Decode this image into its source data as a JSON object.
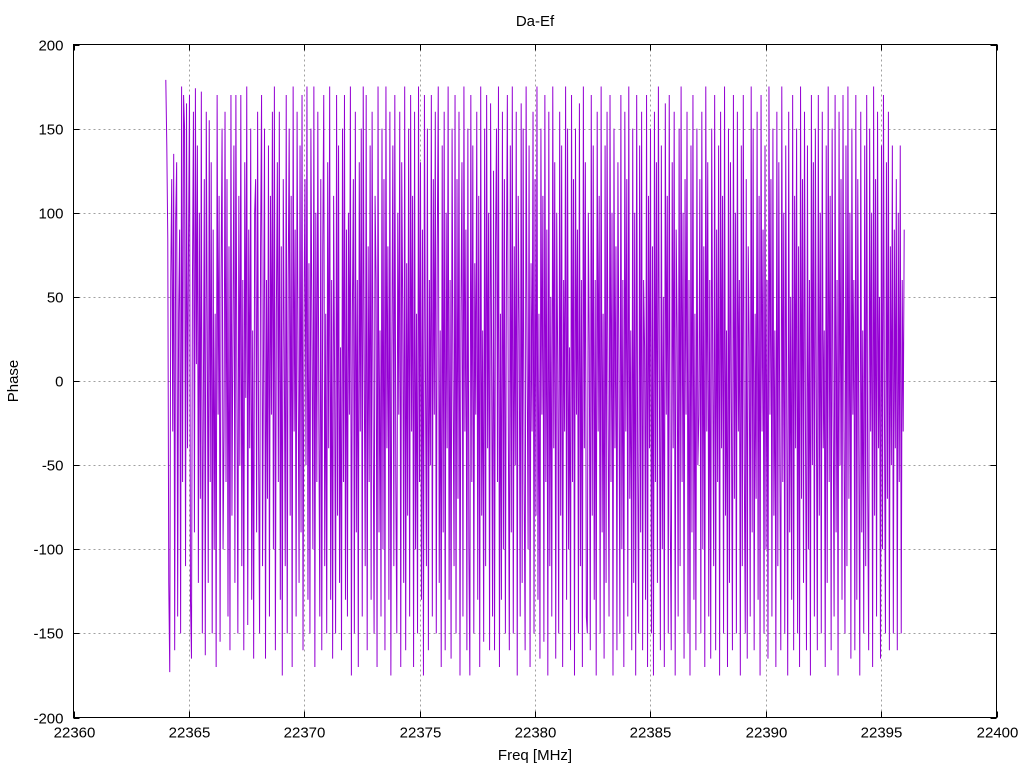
{
  "chart_data": {
    "type": "line",
    "title": "Da-Ef",
    "xlabel": "Freq [MHz]",
    "ylabel": "Phase",
    "xlim": [
      22360,
      22400
    ],
    "ylim": [
      -200,
      200
    ],
    "xticks": [
      22360,
      22365,
      22370,
      22375,
      22380,
      22385,
      22390,
      22395,
      22400
    ],
    "yticks": [
      -200,
      -150,
      -100,
      -50,
      0,
      50,
      100,
      150,
      200
    ],
    "grid": true,
    "line_color": "#9400d3",
    "series": [
      {
        "x_start": 22364.0,
        "x_end": 22396.0,
        "values": [
          179,
          140,
          85,
          -120,
          -173,
          60,
          120,
          -30,
          135,
          -160,
          95,
          130,
          -140,
          40,
          90,
          -150,
          175,
          -60,
          170,
          150,
          -110,
          165,
          -40,
          80,
          170,
          -130,
          -165,
          60,
          160,
          -90,
          174,
          10,
          140,
          -120,
          100,
          -70,
          172,
          -150,
          -20,
          120,
          -163,
          160,
          30,
          -120,
          155,
          -60,
          130,
          -150,
          90,
          -100,
          40,
          -170,
          170,
          -20,
          110,
          -155,
          60,
          150,
          -100,
          -30,
          160,
          -60,
          120,
          -140,
          80,
          -160,
          170,
          -80,
          30,
          140,
          -120,
          170,
          0,
          -150,
          110,
          -50,
          170,
          -110,
          60,
          -160,
          130,
          -10,
          175,
          -145,
          90,
          -40,
          150,
          -130,
          30,
          -165,
          100,
          120,
          -90,
          160,
          -40,
          -150,
          80,
          170,
          -110,
          20,
          150,
          -165,
          60,
          -70,
          140,
          -140,
          110,
          -20,
          160,
          -100,
          175,
          -160,
          40,
          130,
          -60,
          160,
          -130,
          80,
          -175,
          120,
          20,
          -110,
          170,
          -150,
          60,
          150,
          -80,
          110,
          -170,
          175,
          -30,
          90,
          -140,
          160,
          10,
          -120,
          140,
          -90,
          170,
          -160,
          40,
          120,
          -50,
          175,
          -130,
          70,
          -150,
          150,
          30,
          -100,
          175,
          -170,
          100,
          -60,
          160,
          -20,
          -140,
          120,
          -160,
          80,
          170,
          -110,
          40,
          -150,
          130,
          -40,
          175,
          -130,
          60,
          -165,
          110,
          0,
          -150,
          170,
          -80,
          140,
          -120,
          20,
          -160,
          150,
          -60,
          170,
          -130,
          90,
          -140,
          100,
          -20,
          175,
          -175,
          40,
          120,
          -150,
          160,
          -90,
          60,
          -170,
          130,
          -30,
          150,
          -140,
          175,
          10,
          -110,
          170,
          -160,
          80,
          -60,
          140,
          -130,
          160,
          -20,
          -150,
          110,
          60,
          -170,
          175,
          -90,
          30,
          -140,
          150,
          -100,
          120,
          -160,
          175,
          -40,
          80,
          -130,
          160,
          -175,
          20,
          140,
          -110,
          170,
          -60,
          -150,
          100,
          -20,
          160,
          -170,
          130,
          40,
          -120,
          175,
          -160,
          70,
          -80,
          150,
          -140,
          170,
          -30,
          110,
          -170,
          160,
          -100,
          40,
          -150,
          175,
          -60,
          130,
          -130,
          90,
          -175,
          170,
          10,
          -110,
          150,
          -160,
          60,
          -50,
          170,
          -140,
          120,
          -20,
          160,
          -150,
          80,
          175,
          -120,
          30,
          -170,
          140,
          -90,
          160,
          -160,
          100,
          -40,
          175,
          -130,
          60,
          -165,
          150,
          0,
          -110,
          170,
          -150,
          120,
          -70,
          160,
          -175,
          40,
          130,
          -140,
          175,
          -30,
          90,
          -160,
          150,
          -100,
          -175,
          170,
          -60,
          140,
          -150,
          70,
          -20,
          160,
          -130,
          110,
          -170,
          175,
          -80,
          30,
          -155,
          150,
          -110,
          170,
          -40,
          100,
          -160,
          165,
          20,
          -140,
          125,
          -160,
          80,
          150,
          -60,
          175,
          -170,
          40,
          -130,
          160,
          -100,
          120,
          -150,
          60,
          170,
          -30,
          -160,
          140,
          -90,
          175,
          -150,
          80,
          -50,
          160,
          -175,
          110,
          30,
          -140,
          165,
          -120,
          150,
          -60,
          -160,
          175,
          20,
          -100,
          140,
          -170,
          70,
          -30,
          160,
          -150,
          120,
          -80,
          175,
          -130,
          40,
          -165,
          150,
          -20,
          110,
          -155,
          170,
          -60,
          90,
          -175,
          160,
          -110,
          50,
          -140,
          175,
          -40,
          130,
          -165,
          100,
          10,
          -150,
          160,
          -80,
          140,
          -170,
          60,
          -30,
          175,
          -130,
          150,
          -100,
          20,
          -160,
          170,
          -60,
          120,
          -175,
          150,
          -20,
          90,
          -150,
          165,
          -110,
          60,
          -170,
          175,
          -40,
          130,
          -140,
          -150,
          100,
          20,
          -160,
          170,
          -80,
          140,
          -130,
          60,
          -175,
          160,
          -30,
          110,
          -150,
          175,
          -90,
          40,
          -165,
          140,
          -120,
          160,
          -20,
          -140,
          170,
          -60,
          100,
          -175,
          150,
          -40,
          80,
          -160,
          130,
          10,
          -150,
          170,
          -100,
          60,
          -170,
          160,
          -30,
          120,
          -140,
          175,
          -70,
          30,
          -160,
          150,
          -120,
          100,
          -175,
          170,
          -50,
          -150,
          140,
          -90,
          160,
          -160,
          60,
          20,
          -130,
          170,
          -170,
          110,
          -40,
          150,
          -150,
          80,
          -175,
          160,
          -60,
          130,
          -120,
          175,
          0,
          -160,
          140,
          -100,
          50,
          -170,
          165,
          -20,
          110,
          -150,
          170,
          -80,
          -160,
          130,
          -40,
          160,
          -175,
          90,
          30,
          -140,
          150,
          -110,
          175,
          -60,
          100,
          -165,
          120,
          -20,
          160,
          -150,
          60,
          -175,
          140,
          -90,
          170,
          -130,
          40,
          -160,
          150,
          -50,
          -20,
          120,
          -150,
          160,
          -100,
          80,
          -170,
          175,
          -30,
          130,
          -140,
          60,
          -165,
          150,
          10,
          -110,
          170,
          -160,
          90,
          -60,
          140,
          -175,
          160,
          -40,
          110,
          -150,
          175,
          -80,
          30,
          -170,
          150,
          -120,
          130,
          -20,
          -160,
          170,
          -70,
          100,
          -150,
          160,
          -30,
          60,
          -175,
          140,
          -110,
          170,
          -50,
          -150,
          120,
          -165,
          80,
          20,
          -140,
          175,
          -90,
          150,
          -160,
          40,
          -70,
          160,
          -130,
          110,
          -175,
          170,
          -30,
          90,
          -150,
          140,
          -100,
          60,
          -165,
          175,
          -20,
          120,
          -140,
          150,
          -80,
          30,
          -170,
          160,
          -110,
          130,
          -50,
          -160,
          175,
          -60,
          100,
          -150,
          140,
          -20,
          -175,
          160,
          -90,
          50,
          -130,
          170,
          -160,
          110,
          -40,
          150,
          -150,
          80,
          -170,
          175,
          -70,
          120,
          -120,
          160,
          -30,
          -160,
          140,
          -100,
          60,
          -175,
          170,
          -50,
          130,
          -140,
          150,
          -10,
          -160,
          170,
          -80,
          100,
          -150,
          160,
          -40,
          30,
          -170,
          140,
          -120,
          175,
          -60,
          110,
          -160,
          150,
          -20,
          -140,
          170,
          -90,
          60,
          -175,
          160,
          -50,
          120,
          -130,
          170,
          -30,
          -150,
          140,
          -110,
          175,
          -70,
          100,
          -165,
          150,
          -20,
          60,
          -160,
          170,
          -130,
          120,
          -40,
          -175,
          160,
          -90,
          30,
          -150,
          140,
          -110,
          170,
          -60,
          -160,
          150,
          -30,
          100,
          -170,
          175,
          -80,
          120,
          -140,
          160,
          -40,
          50,
          -165,
          140,
          -100,
          170,
          -20,
          -150,
          130,
          -70,
          160,
          -160,
          80,
          -50,
          140,
          -150,
          90,
          -40,
          120,
          -160,
          100,
          -60,
          140,
          -150,
          60,
          -30,
          90
        ]
      }
    ]
  }
}
